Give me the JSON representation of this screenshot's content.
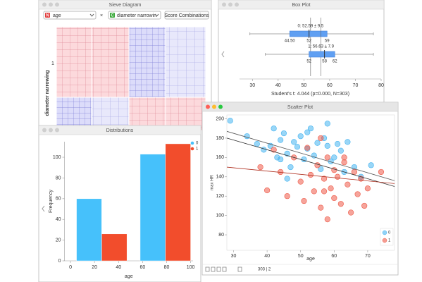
{
  "sieve": {
    "title": "Sieve Diagram",
    "attr1_icon": "N",
    "attr1": "age",
    "clear": "×",
    "attr2_icon": "C",
    "attr2": "diameter narrowin",
    "button": "Score Combinations",
    "y_label": "diameter narrowing",
    "row_label": "1"
  },
  "boxplot": {
    "title": "Box Plot",
    "xlim": [
      25,
      80
    ],
    "xticks": [
      30,
      40,
      50,
      60,
      70,
      80
    ],
    "boxes": [
      {
        "label": "0: 52.59 ± 9.5",
        "min": 29,
        "q1": 44.5,
        "median": 52,
        "q3": 59,
        "max": 77,
        "mean": 52.59,
        "quartile_labels": [
          "44.50",
          "52",
          "59"
        ]
      },
      {
        "label": "1: 56.63 ± 7.9",
        "min": 35,
        "q1": 52,
        "median": 58,
        "q3": 62,
        "max": 77,
        "mean": 56.63,
        "quartile_labels": [
          "52",
          "58",
          "62"
        ]
      }
    ],
    "statistic": "Student's t: 4.044 (p=0.000, N=303)"
  },
  "distributions": {
    "title": "Distributions",
    "type": "bar",
    "x_label": "age",
    "y_label": "Frequency",
    "x": [
      26,
      79
    ],
    "xlim": [
      -5,
      102
    ],
    "ylim": [
      0,
      115
    ],
    "xticks": [
      0,
      20,
      40,
      60,
      80,
      100
    ],
    "yticks": [
      0,
      20,
      40,
      60,
      80,
      100
    ],
    "series": [
      {
        "name": "0",
        "color": "#46c1fb",
        "values": [
          60,
          103
        ]
      },
      {
        "name": "1",
        "color": "#f24d2c",
        "values": [
          26,
          113
        ]
      }
    ]
  },
  "scatter": {
    "title": "Scatter Plot",
    "type": "scatter",
    "x_label": "age",
    "y_label": "max HR",
    "xlim": [
      28,
      78
    ],
    "ylim": [
      64,
      204
    ],
    "xticks": [
      30,
      40,
      50,
      60,
      70
    ],
    "yticks": [
      80,
      100,
      120,
      140,
      160,
      180,
      200
    ],
    "series": [
      {
        "name": "0",
        "color": "#46b4f0",
        "x": [
          29,
          34,
          37,
          39,
          41,
          42,
          43,
          44,
          45,
          46,
          47,
          48,
          49,
          50,
          51,
          52,
          53,
          54,
          55,
          56,
          57,
          58,
          59,
          60,
          62,
          63,
          64,
          66,
          68,
          71,
          44,
          52,
          58,
          61,
          46
        ],
        "y": [
          198,
          182,
          174,
          168,
          172,
          190,
          160,
          178,
          185,
          164,
          150,
          176,
          171,
          182,
          158,
          169,
          190,
          162,
          175,
          148,
          180,
          172,
          156,
          160,
          167,
          145,
          176,
          150,
          140,
          152,
          158,
          186,
          195,
          174,
          138
        ]
      },
      {
        "name": "1",
        "color": "#ee5a48",
        "x": [
          38,
          40,
          42,
          44,
          46,
          48,
          50,
          51,
          52,
          53,
          54,
          55,
          56,
          57,
          58,
          58,
          59,
          60,
          60,
          61,
          62,
          63,
          64,
          65,
          66,
          67,
          68,
          69,
          70,
          74,
          56,
          63,
          57
        ],
        "y": [
          150,
          126,
          168,
          145,
          120,
          160,
          135,
          115,
          170,
          142,
          125,
          152,
          108,
          138,
          160,
          96,
          128,
          147,
          118,
          140,
          112,
          155,
          132,
          103,
          145,
          122,
          138,
          110,
          128,
          145,
          180,
          160,
          125
        ]
      }
    ],
    "lines": [
      {
        "color": "#555555",
        "x": [
          28,
          78
        ],
        "y": [
          187,
          136
        ]
      },
      {
        "color": "#333333",
        "x": [
          28,
          78
        ],
        "y": [
          180,
          130
        ]
      },
      {
        "color": "#b03020",
        "x": [
          28,
          78
        ],
        "y": [
          150,
          133
        ]
      }
    ],
    "status": "303 | 2"
  }
}
